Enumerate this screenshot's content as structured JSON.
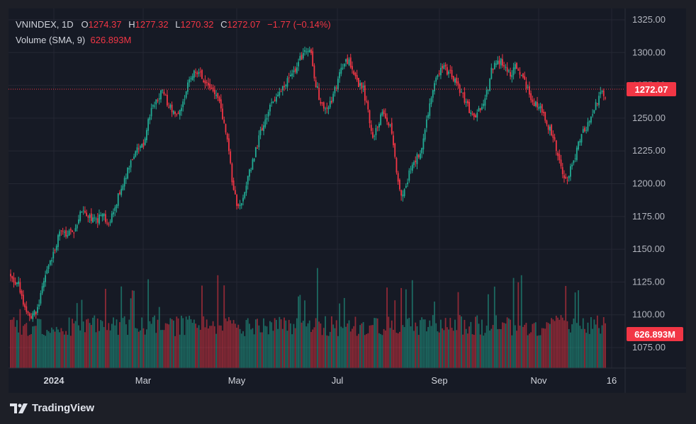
{
  "legend": {
    "symbol": "VNINDEX, 1D",
    "o_label": "O",
    "o_value": "1274.37",
    "h_label": "H",
    "h_value": "1277.32",
    "l_label": "L",
    "l_value": "1270.32",
    "c_label": "C",
    "c_value": "1272.07",
    "change": "−1.77 (−0.14%)",
    "volume_label": "Volume (SMA, 9)",
    "volume_value": "626.893M"
  },
  "price_tag": "1272.07",
  "volume_tag": "626.893M",
  "branding": "TradingView",
  "colors": {
    "up": "#22ab94",
    "down": "#f23645",
    "background": "#161a25",
    "grid": "#242733"
  },
  "chart_data": {
    "type": "candlestick",
    "title": "VNINDEX, 1D",
    "y_ticks": [
      "1325.00",
      "1300.00",
      "1275.00",
      "1250.00",
      "1225.00",
      "1200.00",
      "1175.00",
      "1150.00",
      "1125.00",
      "1100.00",
      "1075.00"
    ],
    "x_ticks": [
      "2024",
      "Mar",
      "May",
      "Jul",
      "Sep",
      "Nov",
      "16"
    ],
    "ylim": [
      1062,
      1330
    ],
    "last_close": 1272.07,
    "last_volume": "626.893M",
    "grid": true,
    "close_path": [
      [
        0,
        1127
      ],
      [
        5,
        1124
      ],
      [
        9,
        1103
      ],
      [
        13,
        1098
      ],
      [
        17,
        1104
      ],
      [
        22,
        1131
      ],
      [
        26,
        1142
      ],
      [
        31,
        1163
      ],
      [
        36,
        1160
      ],
      [
        40,
        1165
      ],
      [
        45,
        1180
      ],
      [
        49,
        1176
      ],
      [
        54,
        1171
      ],
      [
        58,
        1177
      ],
      [
        62,
        1168
      ],
      [
        66,
        1183
      ],
      [
        70,
        1198
      ],
      [
        73,
        1207
      ],
      [
        77,
        1219
      ],
      [
        81,
        1227
      ],
      [
        84,
        1230
      ],
      [
        88,
        1253
      ],
      [
        92,
        1264
      ],
      [
        96,
        1270
      ],
      [
        100,
        1260
      ],
      [
        104,
        1252
      ],
      [
        108,
        1258
      ],
      [
        112,
        1275
      ],
      [
        116,
        1288
      ],
      [
        120,
        1283
      ],
      [
        124,
        1278
      ],
      [
        128,
        1270
      ],
      [
        132,
        1262
      ],
      [
        136,
        1242
      ],
      [
        138,
        1222
      ],
      [
        141,
        1195
      ],
      [
        144,
        1180
      ],
      [
        147,
        1190
      ],
      [
        150,
        1205
      ],
      [
        154,
        1220
      ],
      [
        158,
        1240
      ],
      [
        162,
        1253
      ],
      [
        166,
        1262
      ],
      [
        170,
        1268
      ],
      [
        174,
        1278
      ],
      [
        178,
        1284
      ],
      [
        182,
        1292
      ],
      [
        186,
        1303
      ],
      [
        190,
        1298
      ],
      [
        193,
        1276
      ],
      [
        196,
        1262
      ],
      [
        200,
        1255
      ],
      [
        204,
        1268
      ],
      [
        208,
        1283
      ],
      [
        212,
        1294
      ],
      [
        216,
        1290
      ],
      [
        219,
        1278
      ],
      [
        223,
        1272
      ],
      [
        226,
        1255
      ],
      [
        229,
        1235
      ],
      [
        232,
        1245
      ],
      [
        236,
        1256
      ],
      [
        240,
        1242
      ],
      [
        243,
        1222
      ],
      [
        245,
        1200
      ],
      [
        248,
        1190
      ],
      [
        252,
        1208
      ],
      [
        256,
        1218
      ],
      [
        260,
        1225
      ],
      [
        263,
        1248
      ],
      [
        266,
        1266
      ],
      [
        270,
        1285
      ],
      [
        274,
        1288
      ],
      [
        278,
        1284
      ],
      [
        282,
        1276
      ],
      [
        286,
        1266
      ],
      [
        290,
        1256
      ],
      [
        293,
        1248
      ],
      [
        296,
        1256
      ],
      [
        300,
        1263
      ],
      [
        304,
        1286
      ],
      [
        308,
        1295
      ],
      [
        312,
        1290
      ],
      [
        316,
        1284
      ],
      [
        320,
        1290
      ],
      [
        324,
        1280
      ],
      [
        328,
        1268
      ],
      [
        332,
        1260
      ],
      [
        335,
        1258
      ],
      [
        338,
        1249
      ],
      [
        341,
        1241
      ],
      [
        344,
        1234
      ],
      [
        347,
        1216
      ],
      [
        349,
        1208
      ],
      [
        352,
        1203
      ],
      [
        356,
        1218
      ],
      [
        360,
        1235
      ],
      [
        364,
        1243
      ],
      [
        368,
        1253
      ],
      [
        371,
        1263
      ],
      [
        373,
        1272
      ],
      [
        376,
        1266
      ]
    ]
  }
}
